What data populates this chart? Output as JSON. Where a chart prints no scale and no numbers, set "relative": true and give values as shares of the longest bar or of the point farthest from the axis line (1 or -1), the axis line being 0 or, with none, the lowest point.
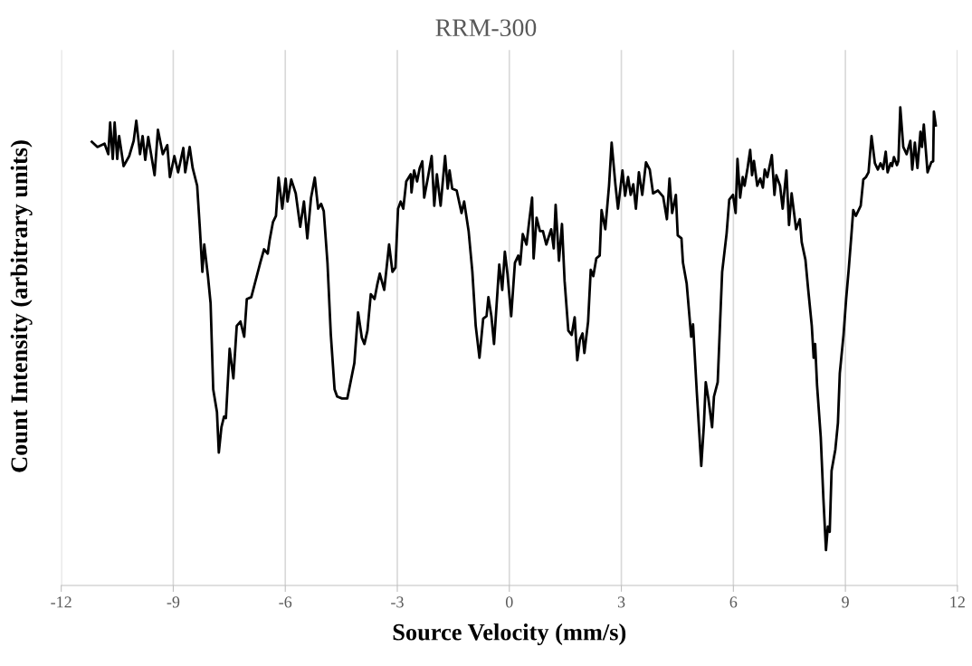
{
  "chart_data": {
    "type": "line",
    "title": "RRM-300",
    "xlabel": "Source Velocity (mm/s)",
    "ylabel": "Count Intensity (arbitrary units)",
    "relative": true,
    "xlim": [
      -12,
      12
    ],
    "xticks": [
      -12,
      -9,
      -6,
      -3,
      0,
      3,
      6,
      9,
      12
    ],
    "grid": "x",
    "tick_labels": "x",
    "series": [
      {
        "color": "#000000",
        "x": [
          -11.18,
          -11.03,
          -10.84,
          -10.74,
          -10.69,
          -10.62,
          -10.57,
          -10.5,
          -10.45,
          -10.33,
          -10.18,
          -10.06,
          -9.99,
          -9.89,
          -9.82,
          -9.75,
          -9.67,
          -9.5,
          -9.41,
          -9.28,
          -9.16,
          -9.09,
          -8.97,
          -8.87,
          -8.73,
          -8.68,
          -8.56,
          -8.48,
          -8.36,
          -8.29,
          -8.22,
          -8.17,
          -8.07,
          -8.0,
          -7.93,
          -7.83,
          -7.78,
          -7.71,
          -7.64,
          -7.59,
          -7.49,
          -7.39,
          -7.3,
          -7.2,
          -7.1,
          -7.03,
          -6.91,
          -6.81,
          -6.67,
          -6.57,
          -6.47,
          -6.42,
          -6.33,
          -6.25,
          -6.18,
          -6.08,
          -5.99,
          -5.94,
          -5.84,
          -5.72,
          -5.6,
          -5.5,
          -5.41,
          -5.31,
          -5.21,
          -5.12,
          -5.04,
          -4.97,
          -4.87,
          -4.78,
          -4.68,
          -4.61,
          -4.48,
          -4.34,
          -4.15,
          -4.05,
          -3.95,
          -3.88,
          -3.8,
          -3.71,
          -3.61,
          -3.54,
          -3.47,
          -3.35,
          -3.22,
          -3.13,
          -3.05,
          -2.98,
          -2.91,
          -2.84,
          -2.76,
          -2.64,
          -2.62,
          -2.55,
          -2.47,
          -2.4,
          -2.33,
          -2.28,
          -2.18,
          -2.08,
          -2.01,
          -1.94,
          -1.84,
          -1.72,
          -1.65,
          -1.6,
          -1.53,
          -1.41,
          -1.28,
          -1.21,
          -1.09,
          -0.99,
          -0.9,
          -0.8,
          -0.7,
          -0.61,
          -0.56,
          -0.48,
          -0.41,
          -0.27,
          -0.19,
          -0.12,
          -0.05,
          0.05,
          0.15,
          0.24,
          0.29,
          0.36,
          0.46,
          0.53,
          0.61,
          0.65,
          0.73,
          0.82,
          0.9,
          0.99,
          1.12,
          1.19,
          1.24,
          1.33,
          1.41,
          1.48,
          1.58,
          1.67,
          1.75,
          1.82,
          1.89,
          1.96,
          2.01,
          2.11,
          2.18,
          2.25,
          2.33,
          2.42,
          2.47,
          2.57,
          2.67,
          2.74,
          2.84,
          2.91,
          3.03,
          3.1,
          3.18,
          3.25,
          3.32,
          3.39,
          3.47,
          3.56,
          3.66,
          3.76,
          3.85,
          3.98,
          4.12,
          4.22,
          4.29,
          4.36,
          4.46,
          4.51,
          4.61,
          4.65,
          4.75,
          4.87,
          4.92,
          5.02,
          5.14,
          5.21,
          5.26,
          5.33,
          5.43,
          5.48,
          5.58,
          5.65,
          5.7,
          5.82,
          5.89,
          5.99,
          6.06,
          6.11,
          6.18,
          6.25,
          6.3,
          6.38,
          6.45,
          6.5,
          6.55,
          6.64,
          6.72,
          6.79,
          6.84,
          6.91,
          7.03,
          7.1,
          7.15,
          7.25,
          7.32,
          7.42,
          7.49,
          7.56,
          7.68,
          7.78,
          7.83,
          7.93,
          8.0,
          8.1,
          8.15,
          8.19,
          8.24,
          8.34,
          8.41,
          8.48,
          8.53,
          8.58,
          8.63,
          8.73,
          8.8,
          8.85,
          8.95,
          9.02,
          9.09,
          9.16,
          9.21,
          9.28,
          9.41,
          9.48,
          9.55,
          9.62,
          9.7,
          9.79,
          9.87,
          9.94,
          10.01,
          10.08,
          10.13,
          10.21,
          10.25,
          10.3,
          10.38,
          10.42,
          10.47,
          10.55,
          10.64,
          10.74,
          10.79,
          10.86,
          10.93,
          11.01,
          11.05,
          11.1,
          11.2,
          11.3,
          11.35,
          11.37,
          11.42
        ],
        "values": [
          0.928,
          0.917,
          0.924,
          0.902,
          0.968,
          0.892,
          0.968,
          0.892,
          0.94,
          0.877,
          0.898,
          0.93,
          0.972,
          0.902,
          0.94,
          0.89,
          0.938,
          0.858,
          0.953,
          0.902,
          0.921,
          0.854,
          0.898,
          0.864,
          0.915,
          0.864,
          0.917,
          0.873,
          0.836,
          0.75,
          0.656,
          0.713,
          0.646,
          0.59,
          0.41,
          0.363,
          0.278,
          0.331,
          0.353,
          0.35,
          0.495,
          0.433,
          0.543,
          0.552,
          0.52,
          0.599,
          0.603,
          0.633,
          0.675,
          0.703,
          0.694,
          0.722,
          0.76,
          0.773,
          0.853,
          0.788,
          0.851,
          0.803,
          0.849,
          0.82,
          0.75,
          0.803,
          0.726,
          0.811,
          0.853,
          0.788,
          0.798,
          0.783,
          0.675,
          0.524,
          0.41,
          0.395,
          0.391,
          0.391,
          0.465,
          0.571,
          0.518,
          0.505,
          0.533,
          0.609,
          0.599,
          0.628,
          0.652,
          0.618,
          0.713,
          0.656,
          0.665,
          0.788,
          0.803,
          0.788,
          0.845,
          0.86,
          0.822,
          0.868,
          0.845,
          0.873,
          0.887,
          0.811,
          0.853,
          0.898,
          0.794,
          0.86,
          0.794,
          0.898,
          0.83,
          0.868,
          0.83,
          0.826,
          0.779,
          0.803,
          0.741,
          0.656,
          0.543,
          0.476,
          0.558,
          0.563,
          0.603,
          0.563,
          0.505,
          0.671,
          0.618,
          0.698,
          0.652,
          0.563,
          0.675,
          0.69,
          0.671,
          0.735,
          0.713,
          0.76,
          0.811,
          0.684,
          0.769,
          0.741,
          0.741,
          0.713,
          0.745,
          0.705,
          0.796,
          0.679,
          0.756,
          0.637,
          0.533,
          0.524,
          0.561,
          0.471,
          0.514,
          0.527,
          0.486,
          0.552,
          0.66,
          0.647,
          0.684,
          0.69,
          0.785,
          0.745,
          0.836,
          0.926,
          0.839,
          0.788,
          0.868,
          0.815,
          0.854,
          0.817,
          0.839,
          0.788,
          0.864,
          0.817,
          0.885,
          0.87,
          0.82,
          0.826,
          0.813,
          0.766,
          0.851,
          0.779,
          0.817,
          0.732,
          0.726,
          0.675,
          0.631,
          0.52,
          0.546,
          0.405,
          0.25,
          0.335,
          0.425,
          0.391,
          0.331,
          0.395,
          0.425,
          0.561,
          0.656,
          0.737,
          0.807,
          0.817,
          0.779,
          0.892,
          0.811,
          0.854,
          0.836,
          0.873,
          0.911,
          0.858,
          0.888,
          0.836,
          0.851,
          0.832,
          0.87,
          0.854,
          0.9,
          0.817,
          0.858,
          0.836,
          0.788,
          0.868,
          0.754,
          0.82,
          0.745,
          0.766,
          0.718,
          0.681,
          0.622,
          0.543,
          0.476,
          0.505,
          0.42,
          0.31,
          0.183,
          0.074,
          0.123,
          0.112,
          0.24,
          0.284,
          0.34,
          0.444,
          0.524,
          0.599,
          0.662,
          0.732,
          0.785,
          0.773,
          0.794,
          0.849,
          0.854,
          0.864,
          0.94,
          0.883,
          0.87,
          0.883,
          0.871,
          0.907,
          0.864,
          0.883,
          0.877,
          0.896,
          0.879,
          0.888,
          1.0,
          0.917,
          0.902,
          0.93,
          0.87,
          0.926,
          0.873,
          0.949,
          0.917,
          0.964,
          0.864,
          0.885,
          0.887,
          0.991,
          0.962
        ]
      }
    ]
  }
}
